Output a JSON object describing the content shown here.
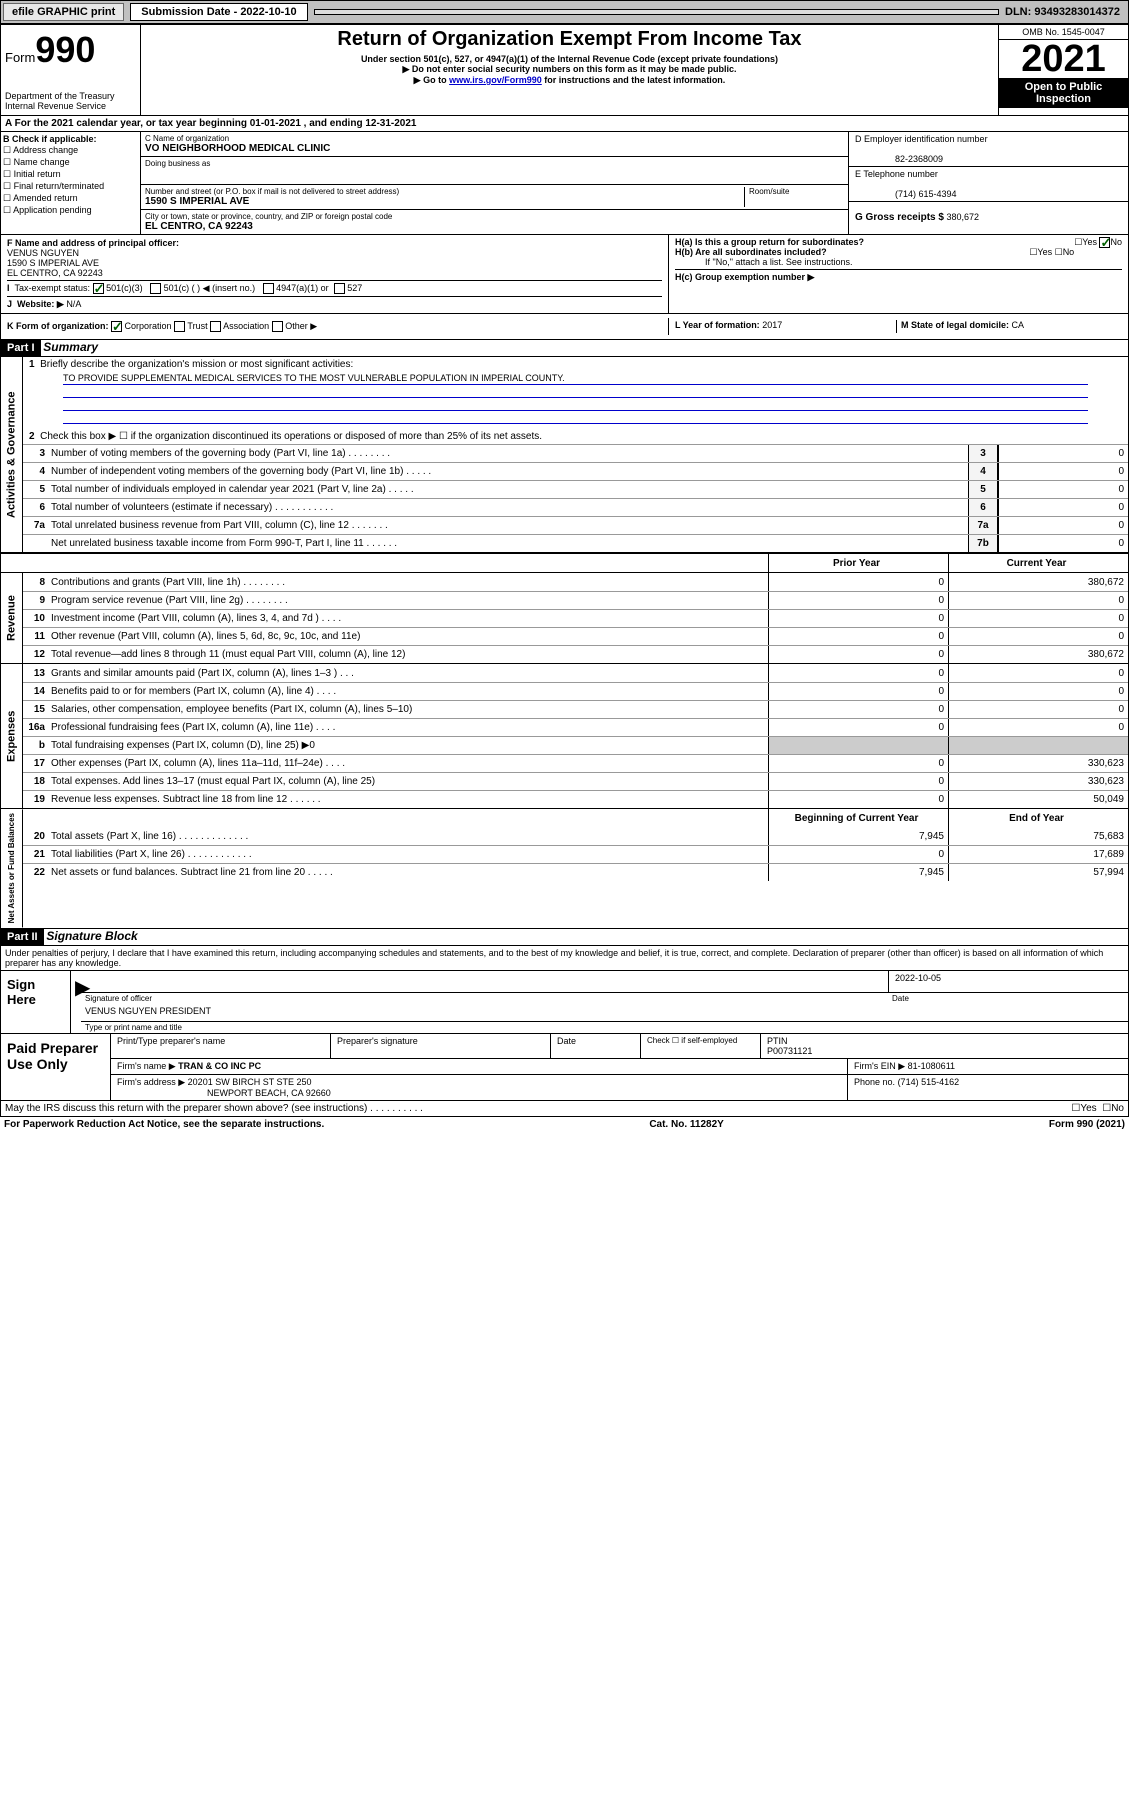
{
  "topbar": {
    "efile": "efile GRAPHIC print",
    "subdate_label": "Submission Date - 2022-10-10",
    "dln": "DLN: 93493283014372"
  },
  "header": {
    "form_label": "Form",
    "form_no": "990",
    "dept": "Department of the Treasury",
    "irs": "Internal Revenue Service",
    "title": "Return of Organization Exempt From Income Tax",
    "sub1": "Under section 501(c), 527, or 4947(a)(1) of the Internal Revenue Code (except private foundations)",
    "sub2": "▶ Do not enter social security numbers on this form as it may be made public.",
    "sub3_pre": "▶ Go to ",
    "sub3_link": "www.irs.gov/Form990",
    "sub3_post": " for instructions and the latest information.",
    "omb": "OMB No. 1545-0047",
    "year": "2021",
    "open": "Open to Public Inspection"
  },
  "lineA": "For the 2021 calendar year, or tax year beginning 01-01-2021   , and ending 12-31-2021",
  "blockB": {
    "label": "B Check if applicable:",
    "opts": [
      "Address change",
      "Name change",
      "Initial return",
      "Final return/terminated",
      "Amended return",
      "Application pending"
    ]
  },
  "blockC": {
    "name_label": "C Name of organization",
    "name": "VO NEIGHBORHOOD MEDICAL CLINIC",
    "dba_label": "Doing business as",
    "dba": "",
    "street_label": "Number and street (or P.O. box if mail is not delivered to street address)",
    "room_label": "Room/suite",
    "street": "1590 S IMPERIAL AVE",
    "city_label": "City or town, state or province, country, and ZIP or foreign postal code",
    "city": "EL CENTRO, CA  92243"
  },
  "blockD": {
    "label": "D Employer identification number",
    "val": "82-2368009"
  },
  "blockE": {
    "label": "E Telephone number",
    "val": "(714) 615-4394"
  },
  "blockG": {
    "label": "G Gross receipts $",
    "val": "380,672"
  },
  "blockF": {
    "label": "F Name and address of principal officer:",
    "name": "VENUS NGUYEN",
    "street": "1590 S IMPERIAL AVE",
    "city": "EL CENTRO, CA  92243"
  },
  "blockH": {
    "a": "H(a)  Is this a group return for subordinates?",
    "a_yes": "Yes",
    "a_no": "No",
    "b": "H(b)  Are all subordinates included?",
    "b_yes": "Yes",
    "b_no": "No",
    "b_note": "If \"No,\" attach a list. See instructions.",
    "c": "H(c)  Group exemption number ▶"
  },
  "lineI": {
    "label": "Tax-exempt status:",
    "opt1": "501(c)(3)",
    "opt2": "501(c) (   ) ◀ (insert no.)",
    "opt3": "4947(a)(1) or",
    "opt4": "527"
  },
  "lineJ": {
    "label": "Website: ▶",
    "val": "N/A"
  },
  "lineK": {
    "label": "K Form of organization:",
    "opts": [
      "Corporation",
      "Trust",
      "Association",
      "Other ▶"
    ]
  },
  "lineL": {
    "label": "L Year of formation:",
    "val": "2017"
  },
  "lineM": {
    "label": "M State of legal domicile:",
    "val": "CA"
  },
  "part1": {
    "code": "Part I",
    "title": "Summary"
  },
  "summary": {
    "side1": "Activities & Governance",
    "l1_label": "Briefly describe the organization's mission or most significant activities:",
    "l1_text": "TO PROVIDE SUPPLEMENTAL MEDICAL SERVICES TO THE MOST VULNERABLE POPULATION IN IMPERIAL COUNTY.",
    "l2": "Check this box ▶ ☐ if the organization discontinued its operations or disposed of more than 25% of its net assets.",
    "rows_gov": [
      {
        "n": "3",
        "t": "Number of voting members of the governing body (Part VI, line 1a)  .  .  .  .  .  .  .  .",
        "box": "3",
        "v": "0"
      },
      {
        "n": "4",
        "t": "Number of independent voting members of the governing body (Part VI, line 1b)  .  .  .  .  .",
        "box": "4",
        "v": "0"
      },
      {
        "n": "5",
        "t": "Total number of individuals employed in calendar year 2021 (Part V, line 2a)  .  .  .  .  .",
        "box": "5",
        "v": "0"
      },
      {
        "n": "6",
        "t": "Total number of volunteers (estimate if necessary)  .  .  .  .  .  .  .  .  .  .  .",
        "box": "6",
        "v": "0"
      },
      {
        "n": "7a",
        "t": "Total unrelated business revenue from Part VIII, column (C), line 12  .  .  .  .  .  .  .",
        "box": "7a",
        "v": "0"
      },
      {
        "n": "",
        "t": "Net unrelated business taxable income from Form 990-T, Part I, line 11  .  .  .  .  .  .",
        "box": "7b",
        "v": "0"
      }
    ],
    "col_prior": "Prior Year",
    "col_curr": "Current Year",
    "side2": "Revenue",
    "rows_rev": [
      {
        "n": "8",
        "t": "Contributions and grants (Part VIII, line 1h)  .  .  .  .  .  .  .  .",
        "p": "0",
        "c": "380,672"
      },
      {
        "n": "9",
        "t": "Program service revenue (Part VIII, line 2g)  .  .  .  .  .  .  .  .",
        "p": "0",
        "c": "0"
      },
      {
        "n": "10",
        "t": "Investment income (Part VIII, column (A), lines 3, 4, and 7d )  .  .  .  .",
        "p": "0",
        "c": "0"
      },
      {
        "n": "11",
        "t": "Other revenue (Part VIII, column (A), lines 5, 6d, 8c, 9c, 10c, and 11e)",
        "p": "0",
        "c": "0"
      },
      {
        "n": "12",
        "t": "Total revenue—add lines 8 through 11 (must equal Part VIII, column (A), line 12)",
        "p": "0",
        "c": "380,672"
      }
    ],
    "side3": "Expenses",
    "rows_exp": [
      {
        "n": "13",
        "t": "Grants and similar amounts paid (Part IX, column (A), lines 1–3 )  .  .  .",
        "p": "0",
        "c": "0"
      },
      {
        "n": "14",
        "t": "Benefits paid to or for members (Part IX, column (A), line 4)  .  .  .  .",
        "p": "0",
        "c": "0"
      },
      {
        "n": "15",
        "t": "Salaries, other compensation, employee benefits (Part IX, column (A), lines 5–10)",
        "p": "0",
        "c": "0"
      },
      {
        "n": "16a",
        "t": "Professional fundraising fees (Part IX, column (A), line 11e)  .  .  .  .",
        "p": "0",
        "c": "0"
      },
      {
        "n": "b",
        "t": "Total fundraising expenses (Part IX, column (D), line 25) ▶0",
        "p": "",
        "c": "",
        "grey": true
      },
      {
        "n": "17",
        "t": "Other expenses (Part IX, column (A), lines 11a–11d, 11f–24e)  .  .  .  .",
        "p": "0",
        "c": "330,623"
      },
      {
        "n": "18",
        "t": "Total expenses. Add lines 13–17 (must equal Part IX, column (A), line 25)",
        "p": "0",
        "c": "330,623"
      },
      {
        "n": "19",
        "t": "Revenue less expenses. Subtract line 18 from line 12  .  .  .  .  .  .",
        "p": "0",
        "c": "50,049"
      }
    ],
    "side4": "Net Assets or Fund Balances",
    "col_beg": "Beginning of Current Year",
    "col_end": "End of Year",
    "rows_net": [
      {
        "n": "20",
        "t": "Total assets (Part X, line 16)  .  .  .  .  .  .  .  .  .  .  .  .  .",
        "p": "7,945",
        "c": "75,683"
      },
      {
        "n": "21",
        "t": "Total liabilities (Part X, line 26)  .  .  .  .  .  .  .  .  .  .  .  .",
        "p": "0",
        "c": "17,689"
      },
      {
        "n": "22",
        "t": "Net assets or fund balances. Subtract line 21 from line 20  .  .  .  .  .",
        "p": "7,945",
        "c": "57,994"
      }
    ]
  },
  "part2": {
    "code": "Part II",
    "title": "Signature Block"
  },
  "perjury": "Under penalties of perjury, I declare that I have examined this return, including accompanying schedules and statements, and to the best of my knowledge and belief, it is true, correct, and complete. Declaration of preparer (other than officer) is based on all information of which preparer has any knowledge.",
  "sign": {
    "here": "Sign Here",
    "sig_officer": "Signature of officer",
    "date": "Date",
    "date_val": "2022-10-05",
    "name": "VENUS NGUYEN  PRESIDENT",
    "name_label": "Type or print name and title"
  },
  "paid": {
    "label": "Paid Preparer Use Only",
    "h1": "Print/Type preparer's name",
    "h2": "Preparer's signature",
    "h3": "Date",
    "h4_check": "Check ☐ if self-employed",
    "h4_ptin": "PTIN",
    "ptin": "P00731121",
    "firm_name_l": "Firm's name    ▶",
    "firm_name": "TRAN & CO INC PC",
    "firm_ein_l": "Firm's EIN ▶",
    "firm_ein": "81-1080611",
    "firm_addr_l": "Firm's address ▶",
    "firm_addr1": "20201 SW BIRCH ST STE 250",
    "firm_addr2": "NEWPORT BEACH, CA  92660",
    "phone_l": "Phone no.",
    "phone": "(714) 515-4162"
  },
  "discuss": "May the IRS discuss this return with the preparer shown above? (see instructions)  .  .  .  .  .  .  .  .  .  .",
  "discuss_yes": "Yes",
  "discuss_no": "No",
  "footer": {
    "l": "For Paperwork Reduction Act Notice, see the separate instructions.",
    "m": "Cat. No. 11282Y",
    "r": "Form 990 (2021)"
  }
}
